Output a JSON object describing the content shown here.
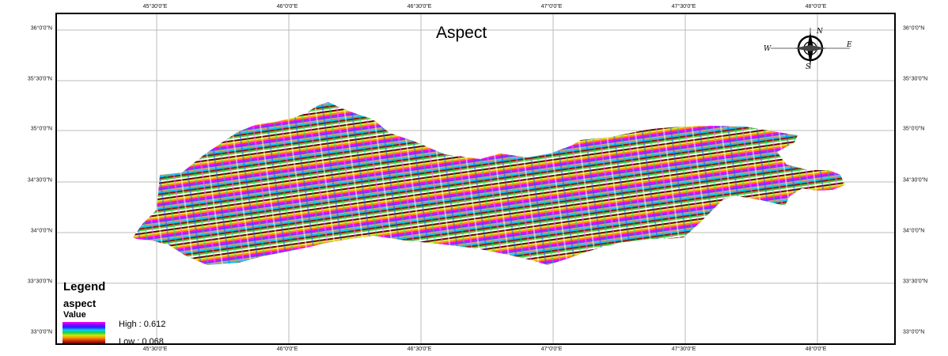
{
  "map": {
    "title": "Aspect",
    "longitude_ticks": [
      "45°30'0\"E",
      "46°0'0\"E",
      "46°30'0\"E",
      "47°0'0\"E",
      "47°30'0\"E",
      "48°0'0\"E"
    ],
    "latitude_ticks": [
      "36°0'0\"N",
      "35°30'0\"N",
      "35°0'0\"N",
      "34°30'0\"N",
      "34°0'0\"N",
      "33°30'0\"N",
      "33°0'0\"N"
    ]
  },
  "legend": {
    "title": "Legend",
    "layer": "aspect",
    "field": "Value",
    "high_label": "High : 0.612",
    "low_label": "Low : 0.068",
    "ramp_colors": [
      "#ff00ff",
      "#8800ff",
      "#2222ff",
      "#00ccff",
      "#22cc44",
      "#ccee00",
      "#ff8800",
      "#c83200",
      "#7a0000"
    ]
  },
  "north_arrow": {
    "n": "N",
    "s": "S",
    "e": "E",
    "w": "W"
  },
  "colors": {
    "frame": "#000000",
    "graticule": "#bbbbbb"
  }
}
